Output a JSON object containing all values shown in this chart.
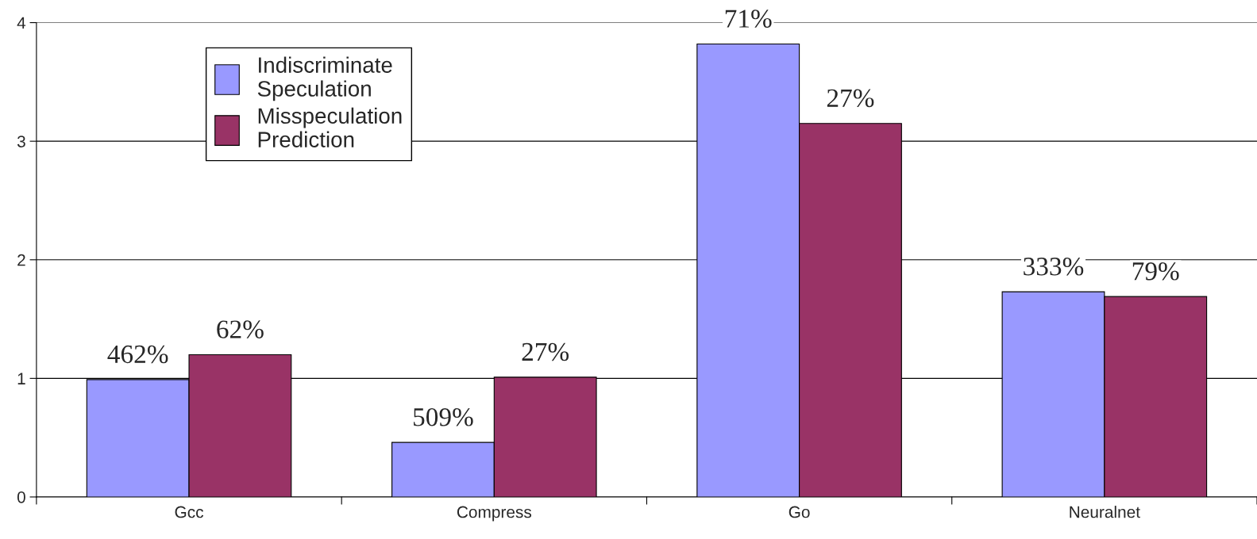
{
  "chart_data": {
    "type": "bar",
    "categories": [
      "Gcc",
      "Compress",
      "Go",
      "Neuralnet"
    ],
    "series": [
      {
        "name": "Indiscriminate\nSpeculation",
        "color": "#9999ff",
        "values": [
          0.99,
          0.46,
          3.82,
          1.73
        ]
      },
      {
        "name": "Misspeculation\nPrediction",
        "color": "#993366",
        "values": [
          1.2,
          1.01,
          3.15,
          1.69
        ]
      }
    ],
    "annotations": [
      {
        "text": "462%",
        "x": "Gcc",
        "y": 0.99
      },
      {
        "text": "509%",
        "x": "Compress",
        "y": 0.46
      },
      {
        "text": "71%",
        "x": "Go",
        "y": 3.82
      },
      {
        "text": "333%",
        "x": "Neuralnet",
        "y": 1.73
      },
      {
        "text": "62%",
        "x": "Gcc",
        "y": 1.2
      },
      {
        "text": "27%",
        "x": "Compress",
        "y": 1.01
      },
      {
        "text": "27%",
        "x": "Go",
        "y": 3.15
      },
      {
        "text": "79%",
        "x": "Neuralnet",
        "y": 1.69
      }
    ],
    "ylim": [
      0,
      4
    ],
    "yticks": [
      0,
      1,
      2,
      3,
      4
    ],
    "grid": "y",
    "legend": "top left"
  }
}
